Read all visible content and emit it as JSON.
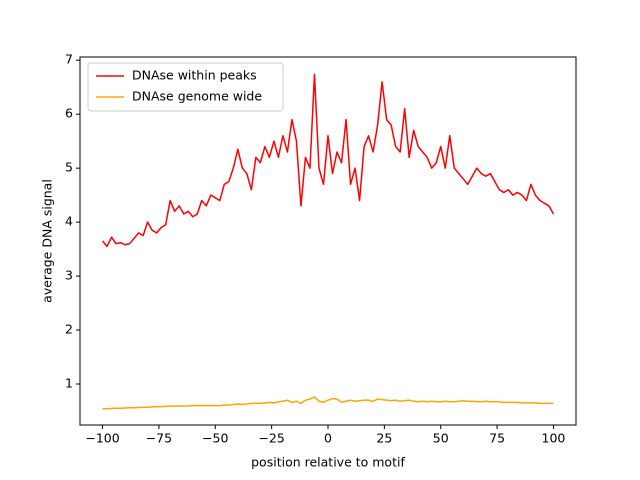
{
  "chart_data": {
    "type": "line",
    "xlabel": "position relative to motif",
    "ylabel": "average DNA signal",
    "x": [
      -100,
      -98,
      -96,
      -94,
      -92,
      -90,
      -88,
      -86,
      -84,
      -82,
      -80,
      -78,
      -76,
      -74,
      -72,
      -70,
      -68,
      -66,
      -64,
      -62,
      -60,
      -58,
      -56,
      -54,
      -52,
      -50,
      -48,
      -46,
      -44,
      -42,
      -40,
      -38,
      -36,
      -34,
      -32,
      -30,
      -28,
      -26,
      -24,
      -22,
      -20,
      -18,
      -16,
      -14,
      -12,
      -10,
      -8,
      -6,
      -4,
      -2,
      0,
      2,
      4,
      6,
      8,
      10,
      12,
      14,
      16,
      18,
      20,
      22,
      24,
      26,
      28,
      30,
      32,
      34,
      36,
      38,
      40,
      42,
      44,
      46,
      48,
      50,
      52,
      54,
      56,
      58,
      60,
      62,
      64,
      66,
      68,
      70,
      72,
      74,
      76,
      78,
      80,
      82,
      84,
      86,
      88,
      90,
      92,
      94,
      96,
      98,
      100
    ],
    "series": [
      {
        "name": "DNAse within peaks",
        "color": "#ff0000",
        "values": [
          3.65,
          3.55,
          3.72,
          3.6,
          3.62,
          3.58,
          3.6,
          3.7,
          3.8,
          3.75,
          4.0,
          3.85,
          3.8,
          3.9,
          3.95,
          4.4,
          4.2,
          4.3,
          4.15,
          4.2,
          4.1,
          4.15,
          4.4,
          4.3,
          4.5,
          4.45,
          4.4,
          4.7,
          4.75,
          5.0,
          5.35,
          5.0,
          4.9,
          4.6,
          5.2,
          5.1,
          5.4,
          5.2,
          5.5,
          5.2,
          5.6,
          5.3,
          5.9,
          5.5,
          4.3,
          5.2,
          5.0,
          6.74,
          5.0,
          4.7,
          5.6,
          4.9,
          5.3,
          5.1,
          5.9,
          4.7,
          5.0,
          4.4,
          5.4,
          5.6,
          5.3,
          5.8,
          6.6,
          5.9,
          5.8,
          5.4,
          5.3,
          6.1,
          5.2,
          5.7,
          5.4,
          5.3,
          5.2,
          5.0,
          5.1,
          5.4,
          5.0,
          5.6,
          5.0,
          4.9,
          4.8,
          4.7,
          4.85,
          5.0,
          4.9,
          4.85,
          4.9,
          4.75,
          4.6,
          4.55,
          4.6,
          4.5,
          4.55,
          4.5,
          4.4,
          4.7,
          4.5,
          4.4,
          4.35,
          4.3,
          4.15
        ]
      },
      {
        "name": "DNAse genome wide",
        "color": "#ffa500",
        "values": [
          0.54,
          0.54,
          0.545,
          0.55,
          0.55,
          0.555,
          0.56,
          0.56,
          0.565,
          0.57,
          0.57,
          0.575,
          0.58,
          0.58,
          0.585,
          0.59,
          0.59,
          0.59,
          0.59,
          0.595,
          0.6,
          0.6,
          0.6,
          0.6,
          0.6,
          0.6,
          0.6,
          0.61,
          0.61,
          0.62,
          0.63,
          0.62,
          0.63,
          0.64,
          0.64,
          0.64,
          0.65,
          0.66,
          0.65,
          0.67,
          0.68,
          0.7,
          0.66,
          0.68,
          0.64,
          0.7,
          0.72,
          0.76,
          0.68,
          0.66,
          0.7,
          0.73,
          0.72,
          0.66,
          0.68,
          0.7,
          0.68,
          0.69,
          0.7,
          0.7,
          0.68,
          0.72,
          0.71,
          0.7,
          0.69,
          0.7,
          0.68,
          0.69,
          0.7,
          0.68,
          0.67,
          0.68,
          0.67,
          0.68,
          0.67,
          0.67,
          0.68,
          0.67,
          0.67,
          0.68,
          0.69,
          0.68,
          0.68,
          0.67,
          0.67,
          0.68,
          0.67,
          0.67,
          0.67,
          0.66,
          0.66,
          0.66,
          0.66,
          0.65,
          0.65,
          0.65,
          0.65,
          0.64,
          0.64,
          0.64,
          0.64
        ]
      }
    ],
    "xlim": [
      -110,
      110
    ],
    "ylim": [
      0.24,
      7.06
    ],
    "xticks": [
      {
        "value": -100,
        "label": "−100"
      },
      {
        "value": -75,
        "label": "−75"
      },
      {
        "value": -50,
        "label": "−50"
      },
      {
        "value": -25,
        "label": "−25"
      },
      0,
      25,
      50,
      75,
      100
    ],
    "yticks": [
      1,
      2,
      3,
      4,
      5,
      6,
      7
    ],
    "grid": false,
    "legend": "upper left"
  }
}
